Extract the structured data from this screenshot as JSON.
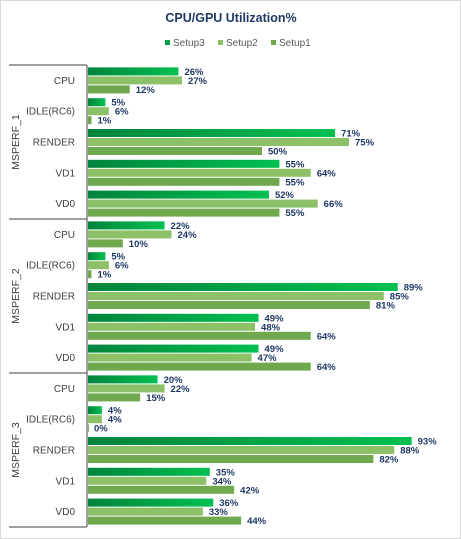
{
  "chart_data": {
    "type": "bar",
    "orientation": "horizontal",
    "title": "CPU/GPU Utilization%",
    "legend_position": "top",
    "grid": false,
    "xlim": [
      0,
      100
    ],
    "value_format": "percent",
    "series": [
      {
        "name": "Setup3",
        "color": "#00a04a"
      },
      {
        "name": "Setup2",
        "color": "#8cc168"
      },
      {
        "name": "Setup1",
        "color": "#70a84e"
      }
    ],
    "groups": [
      {
        "name": "MSPERF_1",
        "categories": [
          {
            "label": "CPU",
            "values": [
              26,
              27,
              12
            ]
          },
          {
            "label": "IDLE(RC6)",
            "values": [
              5,
              6,
              1
            ]
          },
          {
            "label": "RENDER",
            "values": [
              71,
              75,
              50
            ]
          },
          {
            "label": "VD1",
            "values": [
              55,
              64,
              55
            ]
          },
          {
            "label": "VD0",
            "values": [
              52,
              66,
              55
            ]
          }
        ]
      },
      {
        "name": "MSPERF_2",
        "categories": [
          {
            "label": "CPU",
            "values": [
              22,
              24,
              10
            ]
          },
          {
            "label": "IDLE(RC6)",
            "values": [
              5,
              6,
              1
            ]
          },
          {
            "label": "RENDER",
            "values": [
              89,
              85,
              81
            ]
          },
          {
            "label": "VD1",
            "values": [
              49,
              48,
              64
            ]
          },
          {
            "label": "VD0",
            "values": [
              49,
              47,
              64
            ]
          }
        ]
      },
      {
        "name": "MSPERF_3",
        "categories": [
          {
            "label": "CPU",
            "values": [
              20,
              22,
              15
            ]
          },
          {
            "label": "IDLE(RC6)",
            "values": [
              4,
              4,
              0
            ]
          },
          {
            "label": "RENDER",
            "values": [
              93,
              88,
              82
            ]
          },
          {
            "label": "VD1",
            "values": [
              35,
              34,
              42
            ]
          },
          {
            "label": "VD0",
            "values": [
              36,
              33,
              44
            ]
          }
        ]
      }
    ]
  }
}
